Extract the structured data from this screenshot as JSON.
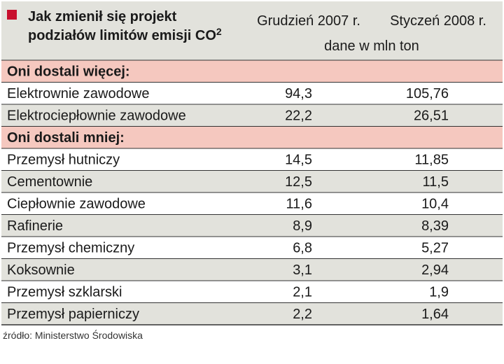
{
  "chart_data": {
    "type": "table",
    "title": "Jak zmienił się projekt podziałów limitów emisji CO",
    "title_superscript": "2",
    "title_line1": "Jak zmienił się projekt",
    "title_line2": "podziałów limitów emisji CO",
    "columns": [
      "Grudzień 2007 r.",
      "Styczeń 2008 r."
    ],
    "unit": "dane w mln ton",
    "sections": [
      {
        "label": "Oni dostali więcej:",
        "rows": [
          {
            "label": "Elektrownie zawodowe",
            "values": [
              "94,3",
              "105,76"
            ]
          },
          {
            "label": "Elektrociepłownie zawodowe",
            "values": [
              "22,2",
              "26,51"
            ]
          }
        ]
      },
      {
        "label": "Oni dostali mniej:",
        "rows": [
          {
            "label": "Przemysł hutniczy",
            "values": [
              "14,5",
              "11,85"
            ]
          },
          {
            "label": "Cementownie",
            "values": [
              "12,5",
              "11,5"
            ]
          },
          {
            "label": "Ciepłownie zawodowe",
            "values": [
              "11,6",
              "10,4"
            ]
          },
          {
            "label": "Rafinerie",
            "values": [
              "8,9",
              "8,39"
            ]
          },
          {
            "label": "Przemysł chemiczny",
            "values": [
              "6,8",
              "5,27"
            ]
          },
          {
            "label": "Koksownie",
            "values": [
              "3,1",
              "2,94"
            ]
          },
          {
            "label": "Przemysł szklarski",
            "values": [
              "2,1",
              "1,9"
            ]
          },
          {
            "label": "Przemysł papierniczy",
            "values": [
              "2,2",
              "1,64"
            ]
          }
        ]
      }
    ],
    "source": "źródło: Ministerstwo Środowiska"
  },
  "colors": {
    "header_background": "#e2e2dc",
    "section_background": "#f5c8bf",
    "stripe_background": "#e2e2dc",
    "plain_background": "#ffffff",
    "marker": "#c8102e",
    "rule": "#333333"
  }
}
